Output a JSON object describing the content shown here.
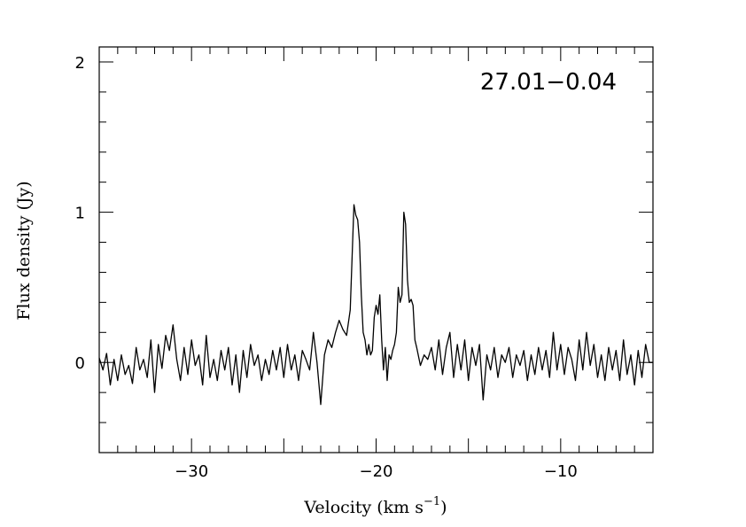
{
  "chart_data": {
    "type": "line",
    "annotation": "27.01−0.04",
    "xlabel_main": "Velocity (km s",
    "xlabel_exp": "−1",
    "xlabel_close": ")",
    "ylabel": "Flux density (Jy)",
    "xlim": [
      -35,
      -5
    ],
    "ylim": [
      -0.6,
      2.1
    ],
    "xticks": [
      {
        "value": -30,
        "label": "−30"
      },
      {
        "value": -20,
        "label": "−20"
      },
      {
        "value": -10,
        "label": "−10"
      }
    ],
    "yticks": [
      {
        "value": 0,
        "label": "0"
      },
      {
        "value": 1,
        "label": "1"
      },
      {
        "value": 2,
        "label": "2"
      }
    ],
    "x_minor_step": 1,
    "y_minor_step": 0.2,
    "x_major_step": 5,
    "series": [
      {
        "color": "#000000",
        "points": [
          [
            -35.0,
            0.03
          ],
          [
            -34.8,
            -0.05
          ],
          [
            -34.6,
            0.06
          ],
          [
            -34.4,
            -0.15
          ],
          [
            -34.2,
            0.02
          ],
          [
            -34.0,
            -0.12
          ],
          [
            -33.8,
            0.05
          ],
          [
            -33.6,
            -0.08
          ],
          [
            -33.4,
            -0.02
          ],
          [
            -33.2,
            -0.14
          ],
          [
            -33.0,
            0.1
          ],
          [
            -32.8,
            -0.05
          ],
          [
            -32.6,
            0.02
          ],
          [
            -32.4,
            -0.1
          ],
          [
            -32.2,
            0.15
          ],
          [
            -32.0,
            -0.2
          ],
          [
            -31.8,
            0.12
          ],
          [
            -31.6,
            -0.04
          ],
          [
            -31.4,
            0.18
          ],
          [
            -31.2,
            0.08
          ],
          [
            -31.0,
            0.25
          ],
          [
            -30.8,
            0.02
          ],
          [
            -30.6,
            -0.12
          ],
          [
            -30.4,
            0.1
          ],
          [
            -30.2,
            -0.08
          ],
          [
            -30.0,
            0.15
          ],
          [
            -29.8,
            -0.02
          ],
          [
            -29.6,
            0.05
          ],
          [
            -29.4,
            -0.15
          ],
          [
            -29.2,
            0.18
          ],
          [
            -29.0,
            -0.1
          ],
          [
            -28.8,
            0.02
          ],
          [
            -28.6,
            -0.12
          ],
          [
            -28.4,
            0.08
          ],
          [
            -28.2,
            -0.05
          ],
          [
            -28.0,
            0.1
          ],
          [
            -27.8,
            -0.15
          ],
          [
            -27.6,
            0.05
          ],
          [
            -27.4,
            -0.2
          ],
          [
            -27.2,
            0.08
          ],
          [
            -27.0,
            -0.1
          ],
          [
            -26.8,
            0.12
          ],
          [
            -26.6,
            -0.02
          ],
          [
            -26.4,
            0.05
          ],
          [
            -26.2,
            -0.12
          ],
          [
            -26.0,
            0.02
          ],
          [
            -25.8,
            -0.08
          ],
          [
            -25.6,
            0.08
          ],
          [
            -25.4,
            -0.05
          ],
          [
            -25.2,
            0.1
          ],
          [
            -25.0,
            -0.1
          ],
          [
            -24.8,
            0.12
          ],
          [
            -24.6,
            -0.05
          ],
          [
            -24.4,
            0.05
          ],
          [
            -24.2,
            -0.12
          ],
          [
            -24.0,
            0.08
          ],
          [
            -23.8,
            0.02
          ],
          [
            -23.6,
            -0.05
          ],
          [
            -23.4,
            0.2
          ],
          [
            -23.2,
            0.0
          ],
          [
            -23.0,
            -0.28
          ],
          [
            -22.8,
            0.05
          ],
          [
            -22.6,
            0.15
          ],
          [
            -22.4,
            0.1
          ],
          [
            -22.2,
            0.2
          ],
          [
            -22.0,
            0.28
          ],
          [
            -21.8,
            0.22
          ],
          [
            -21.6,
            0.18
          ],
          [
            -21.4,
            0.35
          ],
          [
            -21.3,
            0.7
          ],
          [
            -21.2,
            1.05
          ],
          [
            -21.1,
            0.98
          ],
          [
            -21.0,
            0.95
          ],
          [
            -20.9,
            0.8
          ],
          [
            -20.8,
            0.45
          ],
          [
            -20.7,
            0.2
          ],
          [
            -20.6,
            0.15
          ],
          [
            -20.5,
            0.05
          ],
          [
            -20.4,
            0.12
          ],
          [
            -20.3,
            0.05
          ],
          [
            -20.2,
            0.08
          ],
          [
            -20.1,
            0.3
          ],
          [
            -20.0,
            0.38
          ],
          [
            -19.9,
            0.32
          ],
          [
            -19.8,
            0.45
          ],
          [
            -19.7,
            0.15
          ],
          [
            -19.6,
            -0.05
          ],
          [
            -19.5,
            0.1
          ],
          [
            -19.4,
            -0.12
          ],
          [
            -19.3,
            0.05
          ],
          [
            -19.2,
            0.02
          ],
          [
            -19.1,
            0.08
          ],
          [
            -19.0,
            0.12
          ],
          [
            -18.9,
            0.2
          ],
          [
            -18.8,
            0.5
          ],
          [
            -18.7,
            0.4
          ],
          [
            -18.6,
            0.45
          ],
          [
            -18.5,
            1.0
          ],
          [
            -18.4,
            0.92
          ],
          [
            -18.3,
            0.55
          ],
          [
            -18.2,
            0.4
          ],
          [
            -18.1,
            0.42
          ],
          [
            -18.0,
            0.38
          ],
          [
            -17.9,
            0.15
          ],
          [
            -17.8,
            0.1
          ],
          [
            -17.6,
            -0.02
          ],
          [
            -17.4,
            0.05
          ],
          [
            -17.2,
            0.02
          ],
          [
            -17.0,
            0.1
          ],
          [
            -16.8,
            -0.05
          ],
          [
            -16.6,
            0.15
          ],
          [
            -16.4,
            -0.08
          ],
          [
            -16.2,
            0.1
          ],
          [
            -16.0,
            0.2
          ],
          [
            -15.8,
            -0.1
          ],
          [
            -15.6,
            0.12
          ],
          [
            -15.4,
            -0.05
          ],
          [
            -15.2,
            0.15
          ],
          [
            -15.0,
            -0.12
          ],
          [
            -14.8,
            0.1
          ],
          [
            -14.6,
            -0.02
          ],
          [
            -14.4,
            0.12
          ],
          [
            -14.2,
            -0.25
          ],
          [
            -14.0,
            0.05
          ],
          [
            -13.8,
            -0.05
          ],
          [
            -13.6,
            0.1
          ],
          [
            -13.4,
            -0.1
          ],
          [
            -13.2,
            0.05
          ],
          [
            -13.0,
            0.0
          ],
          [
            -12.8,
            0.1
          ],
          [
            -12.6,
            -0.1
          ],
          [
            -12.4,
            0.05
          ],
          [
            -12.2,
            -0.02
          ],
          [
            -12.0,
            0.08
          ],
          [
            -11.8,
            -0.12
          ],
          [
            -11.6,
            0.05
          ],
          [
            -11.4,
            -0.08
          ],
          [
            -11.2,
            0.1
          ],
          [
            -11.0,
            -0.05
          ],
          [
            -10.8,
            0.08
          ],
          [
            -10.6,
            -0.1
          ],
          [
            -10.4,
            0.2
          ],
          [
            -10.2,
            -0.05
          ],
          [
            -10.0,
            0.12
          ],
          [
            -9.8,
            -0.08
          ],
          [
            -9.6,
            0.1
          ],
          [
            -9.4,
            0.02
          ],
          [
            -9.2,
            -0.12
          ],
          [
            -9.0,
            0.15
          ],
          [
            -8.8,
            -0.05
          ],
          [
            -8.6,
            0.2
          ],
          [
            -8.4,
            -0.02
          ],
          [
            -8.2,
            0.12
          ],
          [
            -8.0,
            -0.1
          ],
          [
            -7.8,
            0.05
          ],
          [
            -7.6,
            -0.12
          ],
          [
            -7.4,
            0.1
          ],
          [
            -7.2,
            -0.05
          ],
          [
            -7.0,
            0.08
          ],
          [
            -6.8,
            -0.12
          ],
          [
            -6.6,
            0.15
          ],
          [
            -6.4,
            -0.08
          ],
          [
            -6.2,
            0.05
          ],
          [
            -6.0,
            -0.15
          ],
          [
            -5.8,
            0.08
          ],
          [
            -5.6,
            -0.1
          ],
          [
            -5.4,
            0.12
          ],
          [
            -5.2,
            0.0
          ],
          [
            -5.0,
            0.0
          ]
        ]
      }
    ]
  }
}
